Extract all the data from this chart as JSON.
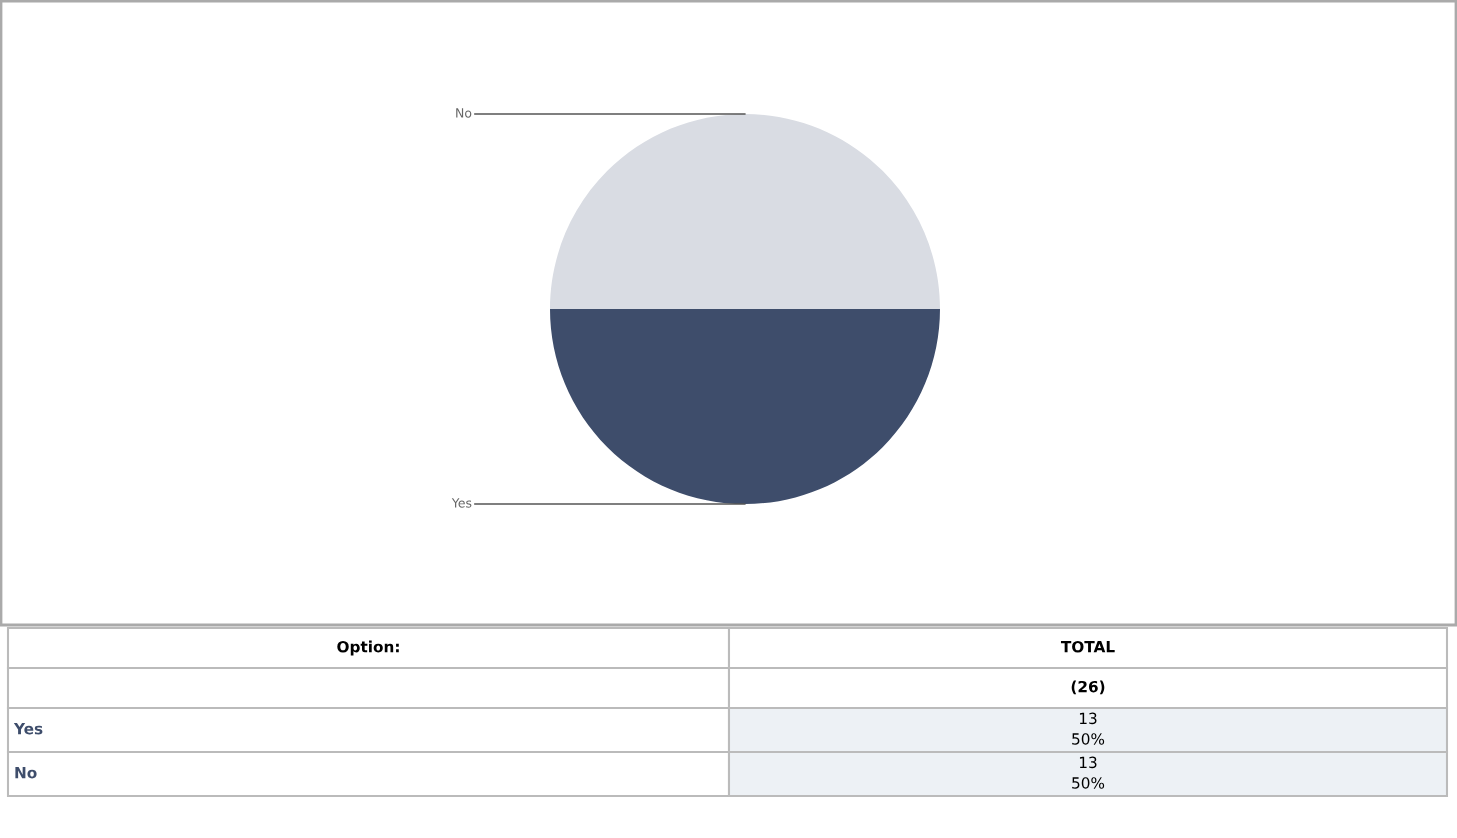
{
  "chart_data": {
    "type": "pie",
    "categories": [
      "Yes",
      "No"
    ],
    "values": [
      50,
      50
    ],
    "colors": [
      "#3e4d6b",
      "#d9dce3"
    ],
    "annotations": [
      "Option:",
      "TOTAL",
      "(26)",
      "13\n50%",
      "13\n50%"
    ]
  }
}
